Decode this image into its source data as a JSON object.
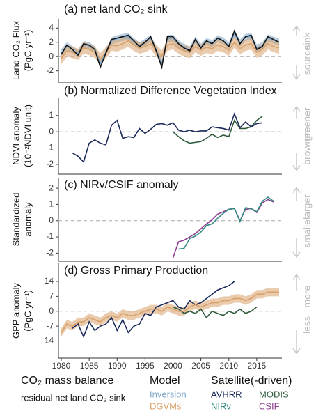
{
  "chart_data": [
    {
      "type": "line",
      "title": "(a) net land CO₂ sink",
      "y_label": [
        "Land CO₂ Flux",
        "(PgC yr⁻¹)"
      ],
      "annotations": [
        "sink",
        "source"
      ],
      "x": [
        1980,
        1981,
        1982,
        1983,
        1984,
        1985,
        1986,
        1987,
        1988,
        1989,
        1990,
        1991,
        1992,
        1993,
        1994,
        1995,
        1996,
        1997,
        1998,
        1999,
        2000,
        2001,
        2002,
        2003,
        2004,
        2005,
        2006,
        2007,
        2008,
        2009,
        2010,
        2011,
        2012,
        2013,
        2014,
        2015,
        2016,
        2017,
        2018,
        2019
      ],
      "xlim": [
        1979.5,
        2019.5
      ],
      "ylim": [
        -3.6,
        5.3
      ],
      "yticks": [
        -2,
        0,
        2,
        4
      ],
      "series": [
        {
          "name": "residual net land CO₂ sink",
          "color": "#111111",
          "values": [
            0.3,
            1.6,
            1.0,
            0.2,
            1.8,
            1.6,
            1.0,
            -1.5,
            0.5,
            2.4,
            2.6,
            2.8,
            3.0,
            2.2,
            1.4,
            2.0,
            2.8,
            0.8,
            -1.5,
            2.8,
            2.8,
            1.8,
            1.2,
            0.8,
            2.4,
            1.2,
            2.2,
            1.8,
            2.6,
            2.2,
            1.4,
            3.6,
            1.8,
            2.8,
            3.0,
            1.0,
            1.4,
            2.8,
            2.4,
            2.0
          ]
        },
        {
          "name": "Inversion",
          "color": "#7fa7c9",
          "spread": 0.5,
          "values": [
            0.5,
            1.5,
            1.0,
            0.4,
            1.7,
            1.5,
            1.0,
            -1.0,
            0.6,
            2.2,
            2.5,
            2.7,
            2.8,
            2.1,
            1.5,
            2.0,
            2.6,
            0.9,
            -1.0,
            2.5,
            2.6,
            1.8,
            1.3,
            0.9,
            2.3,
            1.3,
            2.1,
            1.8,
            2.5,
            2.2,
            1.5,
            3.2,
            1.9,
            2.7,
            2.8,
            1.2,
            1.5,
            2.6,
            2.3,
            2.0
          ]
        },
        {
          "name": "DGVMs",
          "color": "#d8a16a",
          "spread": 0.8,
          "values": [
            -0.3,
            0.8,
            0.6,
            0.3,
            1.2,
            1.0,
            0.6,
            -0.3,
            0.5,
            1.6,
            1.5,
            1.8,
            2.2,
            1.6,
            1.2,
            1.4,
            1.8,
            0.8,
            0.1,
            1.6,
            1.8,
            1.2,
            0.8,
            0.6,
            1.4,
            0.9,
            1.3,
            1.1,
            1.6,
            1.4,
            0.9,
            2.0,
            1.1,
            1.6,
            1.8,
            0.6,
            1.0,
            1.8,
            1.4,
            1.2
          ]
        }
      ]
    },
    {
      "type": "line",
      "title": "(b) Normalized Difference Vegetation Index",
      "y_label": [
        "NDVI anomaly",
        "(10⁻²NDVI unit)"
      ],
      "annotations": [
        "greener",
        "browner"
      ],
      "x": [
        1982,
        1983,
        1984,
        1985,
        1986,
        1987,
        1988,
        1989,
        1990,
        1991,
        1992,
        1993,
        1994,
        1995,
        1996,
        1997,
        1998,
        1999,
        2000,
        2001,
        2002,
        2003,
        2004,
        2005,
        2006,
        2007,
        2008,
        2009,
        2010,
        2011,
        2012,
        2013,
        2014,
        2015,
        2016
      ],
      "xlim": [
        1979.5,
        2019.5
      ],
      "ylim": [
        -2.6,
        2.1
      ],
      "yticks": [
        -2,
        -1,
        0,
        1
      ],
      "series": [
        {
          "name": "AVHRR",
          "color": "#1b2a5a",
          "values": [
            -1.3,
            -1.5,
            -1.85,
            -0.7,
            -0.5,
            -0.7,
            -0.8,
            0.4,
            0.7,
            -0.4,
            -0.3,
            -0.35,
            0.2,
            -0.1,
            0.15,
            0.45,
            0.5,
            0.4,
            0.55,
            0.1,
            0.0,
            0.1,
            0.0,
            0.05,
            0.05,
            0.3,
            0.25,
            0.2,
            0.1,
            1.1,
            0.25,
            0.6,
            0.3,
            0.5,
            0.55
          ]
        },
        {
          "name": "MODIS",
          "color": "#2d5a3a",
          "values": [
            null,
            null,
            null,
            null,
            null,
            null,
            null,
            null,
            null,
            null,
            null,
            null,
            null,
            null,
            null,
            null,
            null,
            null,
            0.0,
            -0.3,
            -0.55,
            -0.7,
            -0.65,
            -0.6,
            -0.4,
            -0.15,
            -0.35,
            -0.2,
            -0.3,
            0.7,
            0.2,
            0.2,
            0.3,
            0.7,
            0.95
          ]
        }
      ]
    },
    {
      "type": "line",
      "title": "(c) NIRv/CSIF anomaly",
      "y_label": [
        "Standardized",
        "anomaly"
      ],
      "annotations": [
        "larger",
        "smaller"
      ],
      "x": [
        2000,
        2001,
        2002,
        2003,
        2004,
        2005,
        2006,
        2007,
        2008,
        2009,
        2010,
        2011,
        2012,
        2013,
        2014,
        2015,
        2016,
        2017,
        2018
      ],
      "xlim": [
        1979.5,
        2019.5
      ],
      "ylim": [
        -2.5,
        2.65
      ],
      "yticks": [
        -2,
        -1,
        0,
        1,
        2
      ],
      "series": [
        {
          "name": "NIRv",
          "color": "#2f8a80",
          "values": [
            null,
            -1.75,
            -1.7,
            -1.1,
            -0.95,
            -0.7,
            -0.3,
            -0.2,
            0.15,
            0.45,
            0.7,
            0.75,
            -0.05,
            0.8,
            0.75,
            0.55,
            1.2,
            1.45,
            1.2
          ]
        },
        {
          "name": "CSIF",
          "color": "#8b3c8f",
          "values": [
            -2.3,
            -1.3,
            -1.2,
            -1.0,
            -0.8,
            -0.5,
            -0.2,
            0.05,
            0.4,
            0.55,
            0.7,
            0.75,
            0.0,
            0.7,
            0.75,
            0.5,
            1.1,
            1.3,
            1.15
          ]
        }
      ]
    },
    {
      "type": "line",
      "title": "(d) Gross Primary Production",
      "y_label": [
        "GPP anomaly",
        "(PgC yr⁻¹)"
      ],
      "annotations": [
        "more",
        "less"
      ],
      "x": [
        1980,
        1981,
        1982,
        1983,
        1984,
        1985,
        1986,
        1987,
        1988,
        1989,
        1990,
        1991,
        1992,
        1993,
        1994,
        1995,
        1996,
        1997,
        1998,
        1999,
        2000,
        2001,
        2002,
        2003,
        2004,
        2005,
        2006,
        2007,
        2008,
        2009,
        2010,
        2011,
        2012,
        2013,
        2014,
        2015,
        2016,
        2017,
        2018,
        2019
      ],
      "xlim": [
        1979.5,
        2019.5
      ],
      "ylim": [
        -22,
        22.5
      ],
      "yticks": [
        -14,
        -7,
        0,
        7,
        14
      ],
      "xticks": [
        1980,
        1985,
        1990,
        1995,
        2000,
        2005,
        2010,
        2015
      ],
      "series": [
        {
          "name": "DGVMs",
          "color": "#d8a16a",
          "spread": 2,
          "values": [
            -10,
            -6,
            -7,
            -5,
            -5,
            -3,
            -4,
            -5,
            -3,
            -2,
            -3,
            -1,
            -2,
            -2,
            -1,
            0,
            1,
            1,
            0,
            2,
            1,
            0,
            0,
            2,
            3,
            2,
            3,
            4,
            4,
            5,
            5,
            6,
            6,
            5,
            6,
            8,
            8,
            9,
            9,
            9
          ]
        },
        {
          "name": "AVHRR",
          "color": "#1b2a5a",
          "values": [
            null,
            null,
            -8,
            -6,
            -12,
            -5,
            -9,
            -7,
            -6,
            -3,
            -9,
            -4,
            -10,
            -7,
            -6,
            -1,
            -2,
            2,
            3,
            4,
            5,
            2,
            1,
            5,
            3,
            4,
            6,
            8,
            10,
            11,
            12,
            14,
            null,
            null,
            null,
            null,
            null,
            null,
            null,
            null
          ]
        },
        {
          "name": "MODIS",
          "color": "#2d5a3a",
          "values": [
            null,
            null,
            null,
            null,
            null,
            null,
            null,
            null,
            null,
            null,
            null,
            null,
            null,
            null,
            null,
            null,
            null,
            null,
            null,
            null,
            2,
            1,
            -1,
            0,
            -1,
            1,
            -3,
            0,
            -1,
            -2,
            0,
            -1,
            1,
            -1,
            0,
            2,
            null,
            null,
            null,
            null
          ]
        }
      ]
    }
  ],
  "legend": {
    "mass_balance": "CO₂ mass balance",
    "model": "Model",
    "satellite": "Satellite(-driven)"
  }
}
